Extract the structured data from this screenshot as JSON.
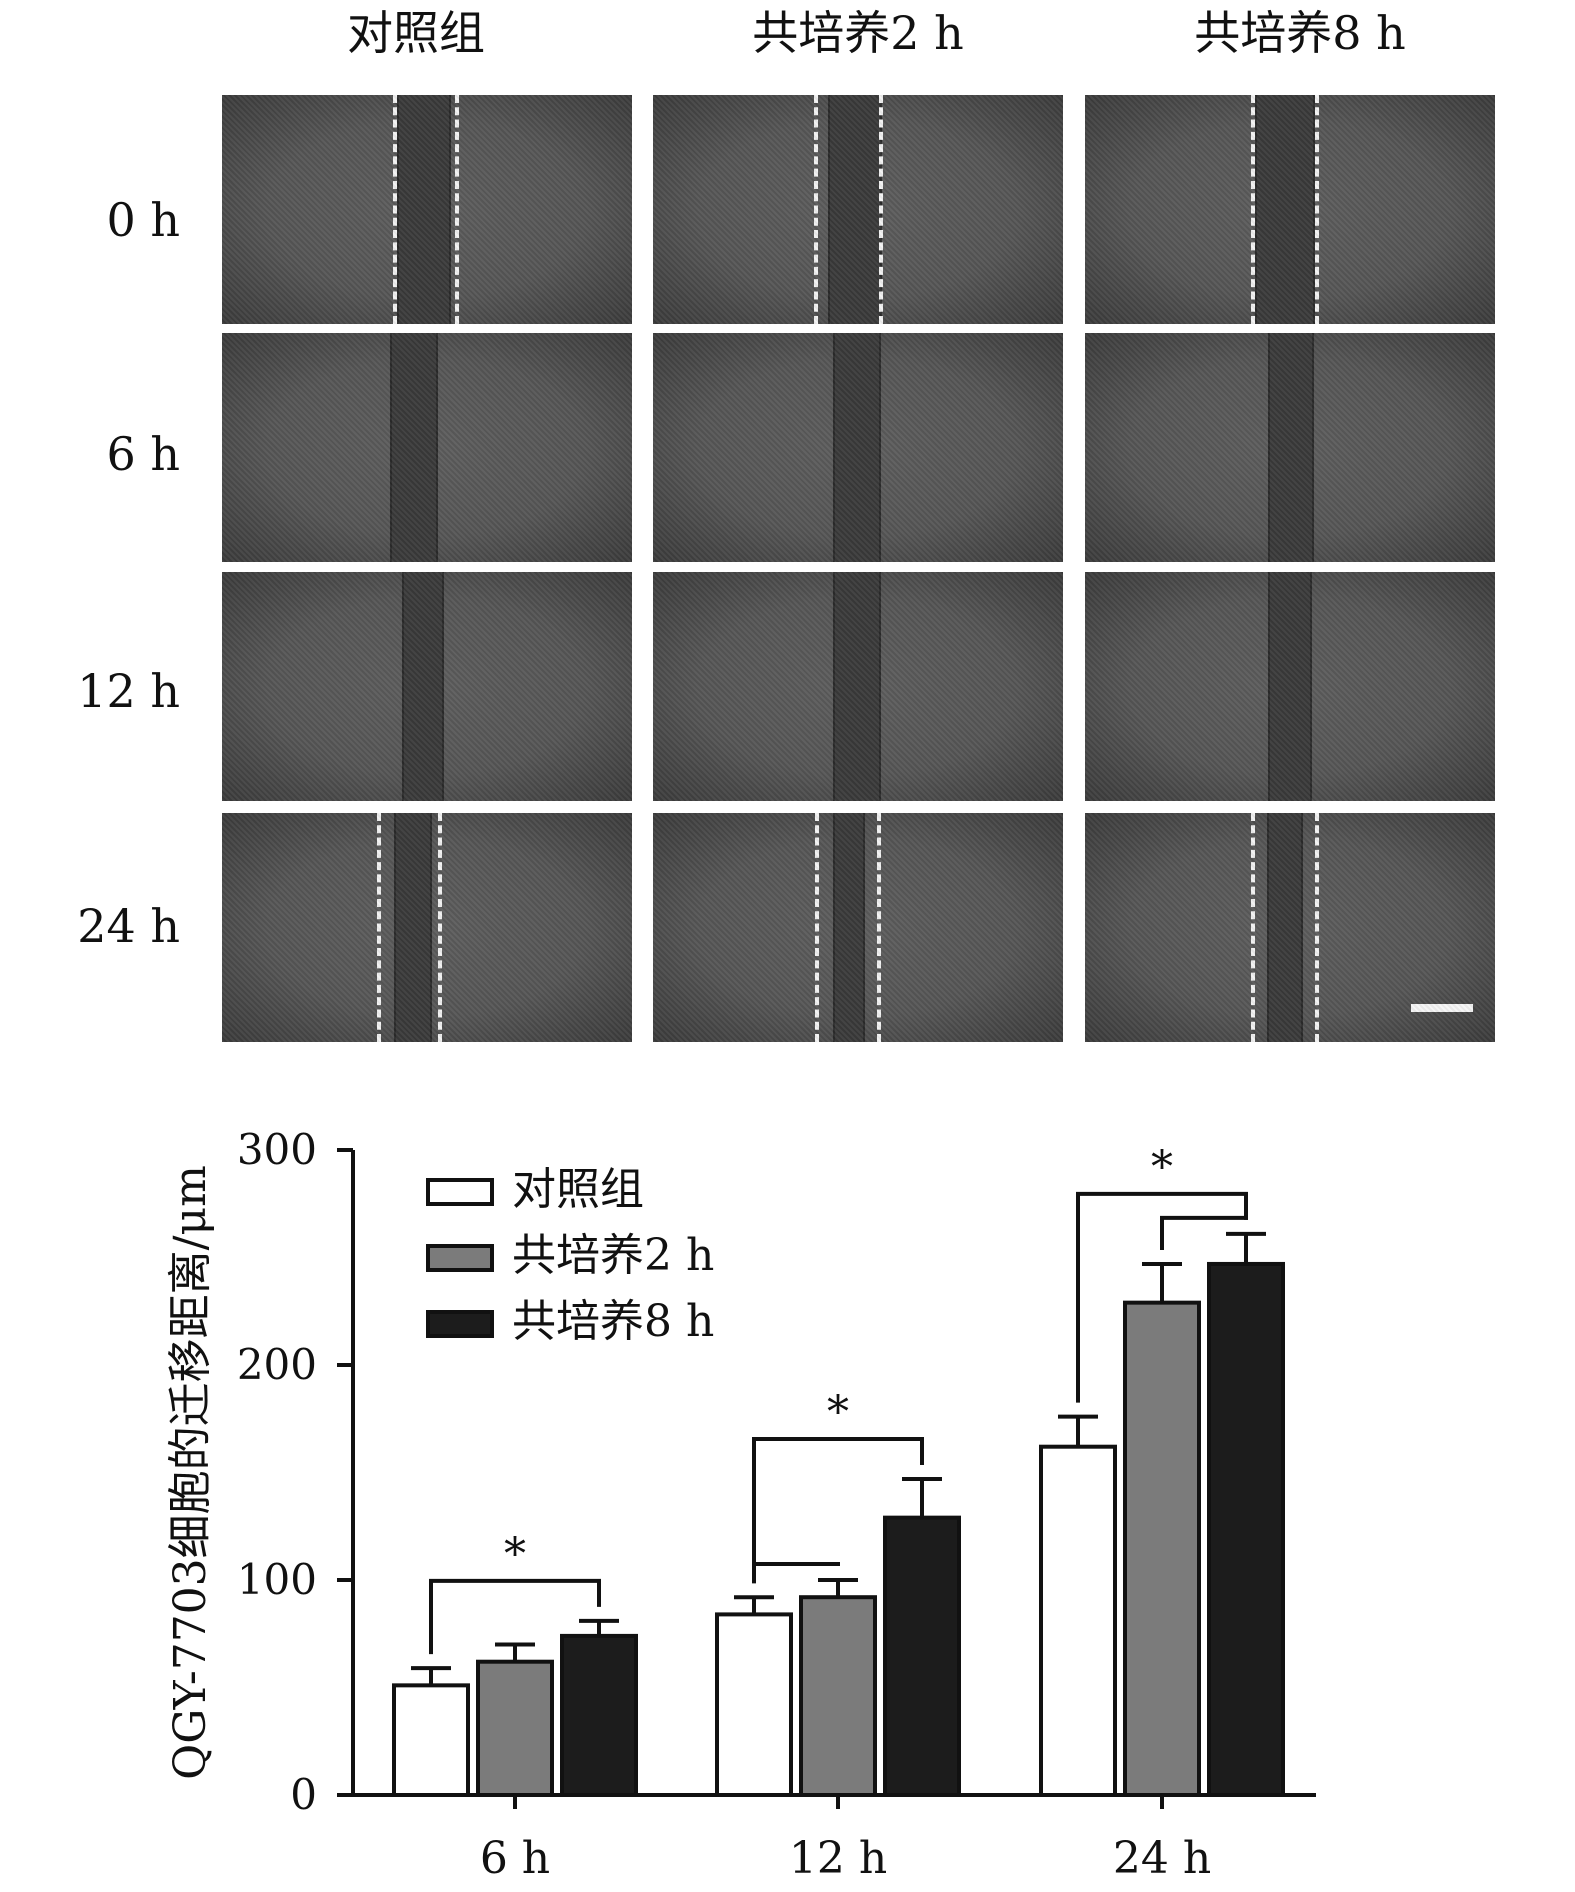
{
  "panel": {
    "columns": [
      "对照组",
      "共培养2 h",
      "共培养8 h"
    ],
    "rows": [
      "0 h",
      "6 h",
      "12 h",
      "24 h"
    ]
  },
  "chart_data": {
    "type": "bar",
    "categories": [
      "6 h",
      "12 h",
      "24 h"
    ],
    "series": [
      {
        "name": "对照组",
        "values": [
          51,
          84,
          162
        ],
        "errors": [
          8,
          8,
          14
        ],
        "color": "#ffffff"
      },
      {
        "name": "共培养2 h",
        "values": [
          62,
          92,
          229
        ],
        "errors": [
          8,
          8,
          18
        ],
        "color": "#7b7b7b"
      },
      {
        "name": "共培养8 h",
        "values": [
          74,
          129,
          247
        ],
        "errors": [
          7,
          18,
          14
        ],
        "color": "#1c1c1c"
      }
    ],
    "xlabel": "",
    "ylabel": "QGY-7703细胞的迁移距离/μm",
    "ylim": [
      0,
      300
    ],
    "yticks": [
      0,
      100,
      200,
      300
    ],
    "legend": "top-left",
    "significance": [
      {
        "category": "6 h",
        "from": 0,
        "to": 2,
        "label": "*"
      },
      {
        "category": "12 h",
        "from": 0,
        "to": 1,
        "label": ""
      },
      {
        "category": "12 h",
        "from": 0,
        "to": 2,
        "label": "*"
      },
      {
        "category": "24 h",
        "from": 0,
        "to": 2,
        "label": "*"
      },
      {
        "category": "24 h",
        "from": 1,
        "to": 2,
        "label": ""
      }
    ]
  }
}
